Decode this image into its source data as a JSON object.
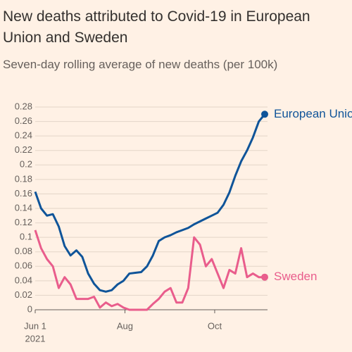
{
  "chart_data": {
    "type": "line",
    "title_lines": [
      "New deaths attributed to Covid-19 in European",
      "Union and Sweden"
    ],
    "subtitle": "Seven-day rolling average of new deaths (per 100k)",
    "x": [
      "2021-06-01",
      "2021-06-05",
      "2021-06-09",
      "2021-06-13",
      "2021-06-17",
      "2021-06-21",
      "2021-06-25",
      "2021-06-29",
      "2021-07-03",
      "2021-07-07",
      "2021-07-11",
      "2021-07-15",
      "2021-07-19",
      "2021-07-23",
      "2021-07-27",
      "2021-07-31",
      "2021-08-04",
      "2021-08-08",
      "2021-08-12",
      "2021-08-16",
      "2021-08-20",
      "2021-08-24",
      "2021-08-28",
      "2021-09-01",
      "2021-09-05",
      "2021-09-09",
      "2021-09-13",
      "2021-09-17",
      "2021-09-21",
      "2021-09-25",
      "2021-09-29",
      "2021-10-03",
      "2021-10-07",
      "2021-10-11",
      "2021-10-15",
      "2021-10-19",
      "2021-10-23",
      "2021-10-27",
      "2021-10-31",
      "2021-11-04"
    ],
    "xlim": [
      "2021-06-01",
      "2021-11-04"
    ],
    "xticks": [
      {
        "value": "2021-06-01",
        "label": "Jun 1"
      },
      {
        "value": "2021-08-01",
        "label": "Aug"
      },
      {
        "value": "2021-10-01",
        "label": "Oct"
      }
    ],
    "x_year_label": "2021",
    "ylim": [
      0,
      0.28
    ],
    "yticks": [
      0,
      0.02,
      0.04,
      0.06,
      0.08,
      0.1,
      0.12,
      0.14,
      0.16,
      0.18,
      0.2,
      0.22,
      0.24,
      0.26,
      0.28
    ],
    "grid": true,
    "series": [
      {
        "name": "European Union",
        "color": "#0f5499",
        "values": [
          0.163,
          0.14,
          0.13,
          0.132,
          0.115,
          0.088,
          0.075,
          0.082,
          0.073,
          0.05,
          0.036,
          0.027,
          0.025,
          0.027,
          0.035,
          0.04,
          0.05,
          0.051,
          0.052,
          0.06,
          0.075,
          0.095,
          0.1,
          0.103,
          0.107,
          0.11,
          0.113,
          0.118,
          0.122,
          0.126,
          0.13,
          0.134,
          0.145,
          0.162,
          0.185,
          0.205,
          0.22,
          0.238,
          0.26,
          0.27
        ]
      },
      {
        "name": "Sweden",
        "color": "#e95d8c",
        "values": [
          0.11,
          0.085,
          0.07,
          0.06,
          0.03,
          0.045,
          0.035,
          0.015,
          0.015,
          0.015,
          0.018,
          0.003,
          0.01,
          0.005,
          0.008,
          0.003,
          0,
          0,
          0,
          0,
          0.008,
          0.015,
          0.025,
          0.03,
          0.01,
          0.01,
          0.03,
          0.1,
          0.09,
          0.06,
          0.07,
          0.05,
          0.03,
          0.055,
          0.05,
          0.085,
          0.045,
          0.05,
          0.045,
          0.045
        ]
      }
    ]
  }
}
